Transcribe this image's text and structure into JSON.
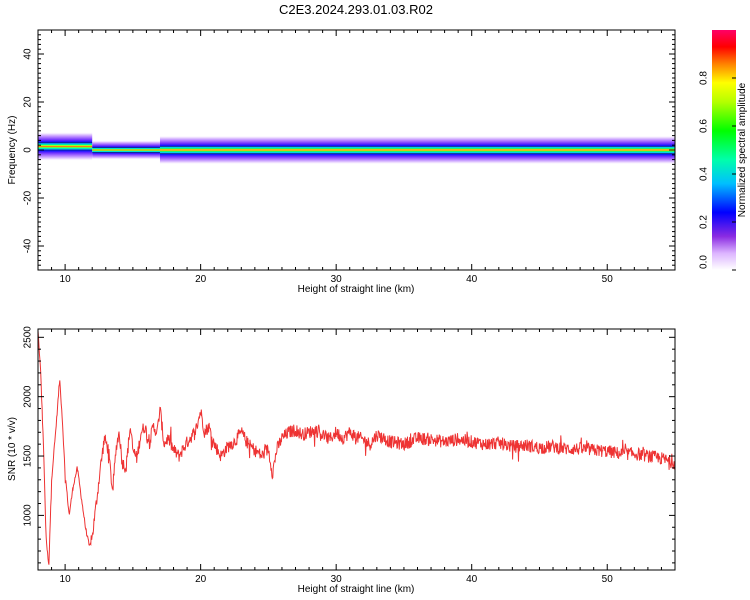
{
  "figure": {
    "title": "C2E3.2024.293.01.03.R02"
  },
  "chart_data": [
    {
      "type": "heatmap",
      "xlabel": "Height of straight line (km)",
      "ylabel": "Frequency (Hz)",
      "xlim": [
        8,
        55
      ],
      "ylim": [
        -50,
        50
      ],
      "x_ticks": [
        10,
        20,
        30,
        40,
        50
      ],
      "y_ticks": [
        -40,
        -20,
        0,
        20,
        40
      ],
      "minor_x_step": 1,
      "minor_y_step": 2,
      "band_segments": [
        {
          "x_start": 8.0,
          "x_end": 12.0,
          "center_hz": 1.5,
          "half_width_hz": 6.0
        },
        {
          "x_start": 12.0,
          "x_end": 17.0,
          "center_hz": 0.0,
          "half_width_hz": 4.0
        },
        {
          "x_start": 17.0,
          "x_end": 55.0,
          "center_hz": 0.0,
          "half_width_hz": 6.0
        }
      ],
      "colorbar": {
        "label": "Normalized spectral amplitude",
        "range": [
          0,
          1
        ],
        "ticks": [
          0.0,
          0.2,
          0.4,
          0.6,
          0.8
        ],
        "tick_labels": [
          "0.0",
          "0.2",
          "0.4",
          "0.6",
          "0.8"
        ],
        "colormap": "rainbow (white → violet → blue → cyan → green → yellow → red → magenta)"
      }
    },
    {
      "type": "line",
      "xlabel": "Height of straight line (km)",
      "ylabel": "SNR (10 * v/v)",
      "xlim": [
        8,
        55
      ],
      "ylim": [
        540,
        2570
      ],
      "x_ticks": [
        10,
        20,
        30,
        40,
        50
      ],
      "y_ticks": [
        1000,
        1500,
        2000,
        2500
      ],
      "minor_x_step": 1,
      "minor_y_step": 100,
      "line_color": "#ee3333",
      "series": [
        {
          "x": [
            8.0,
            8.2,
            8.4,
            8.6,
            8.8,
            9.0,
            9.3,
            9.6,
            9.8,
            10.0,
            10.3,
            10.6,
            10.9,
            11.2,
            11.5,
            11.8,
            12.0,
            12.3,
            12.6,
            12.9,
            13.2,
            13.5,
            13.8,
            14.0,
            14.2,
            14.5,
            14.8,
            15.0,
            15.3,
            15.6,
            15.9,
            16.2,
            16.5,
            16.8,
            17.0,
            17.3,
            17.6,
            18.0,
            18.4,
            18.8,
            19.2,
            19.6,
            20.0,
            20.3,
            20.6,
            21.0,
            21.5,
            22.0,
            22.5,
            23.0,
            23.5,
            24.0,
            24.5,
            25.0,
            25.3,
            25.6,
            26.0,
            26.5,
            27.0,
            27.5,
            28.0,
            28.5,
            29.0,
            29.5,
            30.0,
            30.5,
            31.0,
            31.5,
            32.0,
            32.5,
            33.0,
            34.0,
            35.0,
            36.0,
            37.0,
            38.0,
            39.0,
            40.0,
            41.0,
            42.0,
            43.0,
            44.0,
            45.0,
            46.0,
            47.0,
            48.0,
            49.0,
            50.0,
            51.0,
            52.0,
            53.0,
            54.0,
            55.0
          ],
          "y": [
            2550,
            2200,
            1600,
            800,
            560,
            1300,
            1700,
            2150,
            1800,
            1350,
            1000,
            1250,
            1400,
            1150,
            900,
            730,
            820,
            1100,
            1400,
            1650,
            1550,
            1200,
            1600,
            1700,
            1450,
            1400,
            1750,
            1550,
            1480,
            1700,
            1750,
            1600,
            1750,
            1700,
            1900,
            1600,
            1650,
            1550,
            1500,
            1580,
            1650,
            1700,
            1880,
            1700,
            1750,
            1600,
            1500,
            1580,
            1620,
            1700,
            1600,
            1550,
            1500,
            1560,
            1350,
            1550,
            1650,
            1700,
            1720,
            1680,
            1700,
            1720,
            1680,
            1640,
            1700,
            1650,
            1700,
            1660,
            1640,
            1600,
            1680,
            1620,
            1600,
            1650,
            1640,
            1620,
            1640,
            1620,
            1600,
            1610,
            1580,
            1590,
            1570,
            1580,
            1560,
            1560,
            1550,
            1540,
            1520,
            1520,
            1500,
            1480,
            1440
          ]
        }
      ]
    }
  ]
}
